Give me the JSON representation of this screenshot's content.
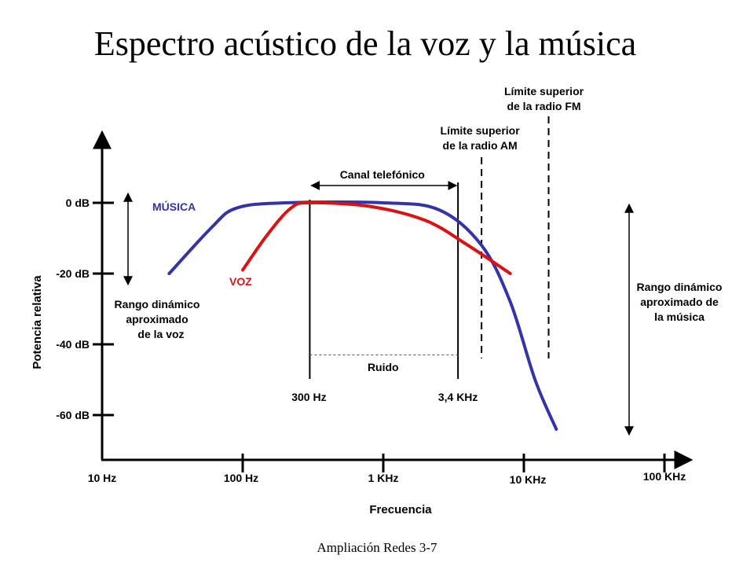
{
  "title": "Espectro acústico de la voz y la música",
  "footer": "Ampliación Redes 3-7",
  "chart_data": {
    "type": "line",
    "xlabel": "Frecuencia",
    "ylabel": "Potencia relativa",
    "x_scale": "log",
    "xlim": [
      10,
      100000
    ],
    "ylim": [
      -70,
      14
    ],
    "x_ticks": [
      {
        "value": 10,
        "label": "10 Hz"
      },
      {
        "value": 100,
        "label": "100 Hz"
      },
      {
        "value": 1000,
        "label": "1 KHz"
      },
      {
        "value": 10000,
        "label": "10 KHz"
      },
      {
        "value": 100000,
        "label": "100 KHz"
      }
    ],
    "y_ticks": [
      {
        "value": 0,
        "label": "0 dB"
      },
      {
        "value": -20,
        "label": "-20 dB"
      },
      {
        "value": -40,
        "label": "-40 dB"
      },
      {
        "value": -60,
        "label": "-60 dB"
      }
    ],
    "series": [
      {
        "name": "MÚSICA",
        "color": "#3333aa",
        "points": [
          [
            30,
            -20
          ],
          [
            60,
            -7
          ],
          [
            90,
            -1.5
          ],
          [
            200,
            0
          ],
          [
            1000,
            0
          ],
          [
            2500,
            -2
          ],
          [
            5000,
            -12
          ],
          [
            8000,
            -28
          ],
          [
            12000,
            -50
          ],
          [
            17000,
            -64
          ]
        ]
      },
      {
        "name": "VOZ",
        "color": "#dd1111",
        "points": [
          [
            100,
            -19
          ],
          [
            150,
            -9
          ],
          [
            220,
            -1.5
          ],
          [
            300,
            0
          ],
          [
            800,
            -1
          ],
          [
            2000,
            -5
          ],
          [
            4000,
            -12
          ],
          [
            8000,
            -20
          ]
        ]
      }
    ],
    "annotations": {
      "canal": {
        "label": "Canal telefónico",
        "from": 300,
        "to": 3400,
        "from_label": "300 Hz",
        "to_label": "3,4 KHz"
      },
      "ruido": {
        "label": "Ruido",
        "level": -43
      },
      "am": {
        "label_line1": "Límite superior",
        "label_line2": "de la radio AM",
        "freq": 5000
      },
      "fm": {
        "label_line1": "Límite superior",
        "label_line2": "de la radio FM",
        "freq": 15000
      },
      "rango_voz": {
        "line1": "Rango dinámico",
        "line2": "aproximado",
        "line3": "de la voz",
        "from": 0,
        "to": -20
      },
      "rango_musica": {
        "line1": "Rango dinámico",
        "line2": "aproximado de",
        "line3": "la música",
        "from": 0,
        "to": -66
      }
    }
  }
}
